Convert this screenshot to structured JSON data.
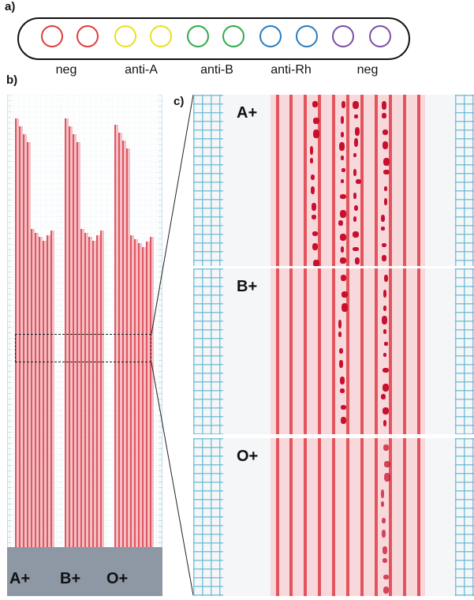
{
  "panels": {
    "a": "a)",
    "b": "b)",
    "c": "c)"
  },
  "rings": [
    {
      "color": "#e23b3b"
    },
    {
      "color": "#e23b3b"
    },
    {
      "color": "#eadf24"
    },
    {
      "color": "#eadf24"
    },
    {
      "color": "#2eaa4a"
    },
    {
      "color": "#2eaa4a"
    },
    {
      "color": "#2a7bbd"
    },
    {
      "color": "#2a7bbd"
    },
    {
      "color": "#7c4ea3"
    },
    {
      "color": "#7c4ea3"
    }
  ],
  "groups": [
    "neg",
    "anti-A",
    "anti-B",
    "anti-Rh",
    "neg"
  ],
  "blood_types": [
    "A+",
    "B+",
    "O+"
  ],
  "colors": {
    "channel_red": "#e4545d",
    "agglutination_red": "#c8102e",
    "grid_blue": "#5ab4d2"
  }
}
